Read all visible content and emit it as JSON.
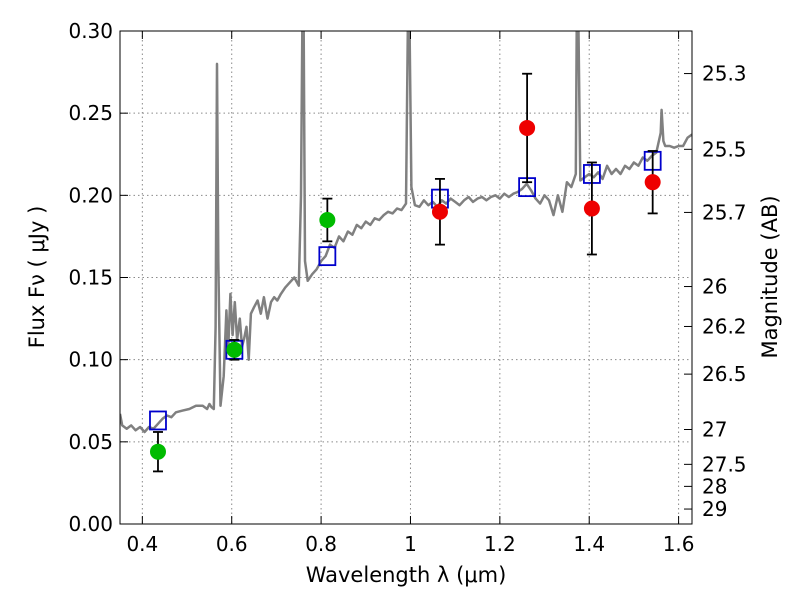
{
  "chart_data": {
    "type": "scatter",
    "title": "",
    "xlabel": "Wavelength  λ (μm)",
    "ylabel": "Flux  Fν  ( μJy )",
    "y2label": "Magnitude (AB)",
    "xlim": [
      0.35,
      1.63
    ],
    "ylim": [
      0.0,
      0.3
    ],
    "grid": true,
    "legend": "none",
    "x_ticks": [
      0.4,
      0.6,
      0.8,
      1.0,
      1.2,
      1.4,
      1.6
    ],
    "x_tick_labels": [
      "0.4",
      "0.6",
      "0.8",
      "1",
      "1.2",
      "1.4",
      "1.6"
    ],
    "y_ticks": [
      0.0,
      0.05,
      0.1,
      0.15,
      0.2,
      0.25,
      0.3
    ],
    "y_tick_labels": [
      "0.00",
      "0.05",
      "0.10",
      "0.15",
      "0.20",
      "0.25",
      "0.30"
    ],
    "y2_ticks": [
      {
        "label": "25.3",
        "flux": 0.2741
      },
      {
        "label": "25.5",
        "flux": 0.228
      },
      {
        "label": "25.7",
        "flux": 0.1896
      },
      {
        "label": "26",
        "flux": 0.1445
      },
      {
        "label": "26.2",
        "flux": 0.1202
      },
      {
        "label": "26.5",
        "flux": 0.0912
      },
      {
        "label": "27",
        "flux": 0.0575
      },
      {
        "label": "27.5",
        "flux": 0.0363
      },
      {
        "label": "28",
        "flux": 0.0229
      },
      {
        "label": "29",
        "flux": 0.0091
      }
    ],
    "colors": {
      "model": "#808080",
      "green": "#00bb00",
      "red": "#ee0000",
      "box": "#0000cc",
      "grid": "#8a8a8a"
    },
    "series": [
      {
        "kind": "line",
        "points": [
          [
            0.35,
            0.067
          ],
          [
            0.355,
            0.06
          ],
          [
            0.365,
            0.058
          ],
          [
            0.375,
            0.06
          ],
          [
            0.385,
            0.057
          ],
          [
            0.395,
            0.059
          ],
          [
            0.405,
            0.056
          ],
          [
            0.415,
            0.059
          ],
          [
            0.425,
            0.058
          ],
          [
            0.435,
            0.061
          ],
          [
            0.445,
            0.064
          ],
          [
            0.455,
            0.066
          ],
          [
            0.465,
            0.065
          ],
          [
            0.475,
            0.068
          ],
          [
            0.49,
            0.069
          ],
          [
            0.505,
            0.07
          ],
          [
            0.52,
            0.072
          ],
          [
            0.535,
            0.072
          ],
          [
            0.545,
            0.07
          ],
          [
            0.55,
            0.073
          ],
          [
            0.555,
            0.071
          ],
          [
            0.56,
            0.07
          ],
          [
            0.564,
            0.12
          ],
          [
            0.567,
            0.28
          ],
          [
            0.57,
            0.16
          ],
          [
            0.575,
            0.072
          ],
          [
            0.582,
            0.09
          ],
          [
            0.588,
            0.13
          ],
          [
            0.592,
            0.105
          ],
          [
            0.597,
            0.14
          ],
          [
            0.602,
            0.115
          ],
          [
            0.607,
            0.135
          ],
          [
            0.612,
            0.112
          ],
          [
            0.618,
            0.125
          ],
          [
            0.623,
            0.108
          ],
          [
            0.628,
            0.113
          ],
          [
            0.633,
            0.12
          ],
          [
            0.638,
            0.1
          ],
          [
            0.643,
            0.128
          ],
          [
            0.65,
            0.132
          ],
          [
            0.658,
            0.136
          ],
          [
            0.665,
            0.128
          ],
          [
            0.672,
            0.138
          ],
          [
            0.68,
            0.125
          ],
          [
            0.688,
            0.135
          ],
          [
            0.695,
            0.138
          ],
          [
            0.702,
            0.136
          ],
          [
            0.71,
            0.14
          ],
          [
            0.72,
            0.144
          ],
          [
            0.73,
            0.147
          ],
          [
            0.74,
            0.15
          ],
          [
            0.75,
            0.145
          ],
          [
            0.755,
            0.2
          ],
          [
            0.758,
            0.3
          ],
          [
            0.761,
            0.3
          ],
          [
            0.764,
            0.16
          ],
          [
            0.77,
            0.148
          ],
          [
            0.78,
            0.152
          ],
          [
            0.79,
            0.155
          ],
          [
            0.8,
            0.16
          ],
          [
            0.81,
            0.163
          ],
          [
            0.82,
            0.17
          ],
          [
            0.83,
            0.168
          ],
          [
            0.84,
            0.175
          ],
          [
            0.85,
            0.172
          ],
          [
            0.86,
            0.178
          ],
          [
            0.87,
            0.176
          ],
          [
            0.88,
            0.182
          ],
          [
            0.89,
            0.18
          ],
          [
            0.9,
            0.184
          ],
          [
            0.91,
            0.182
          ],
          [
            0.92,
            0.186
          ],
          [
            0.93,
            0.185
          ],
          [
            0.94,
            0.188
          ],
          [
            0.95,
            0.19
          ],
          [
            0.96,
            0.189
          ],
          [
            0.97,
            0.192
          ],
          [
            0.98,
            0.191
          ],
          [
            0.99,
            0.195
          ],
          [
            0.994,
            0.3
          ],
          [
            0.998,
            0.3
          ],
          [
            1.002,
            0.205
          ],
          [
            1.01,
            0.194
          ],
          [
            1.02,
            0.193
          ],
          [
            1.03,
            0.197
          ],
          [
            1.04,
            0.194
          ],
          [
            1.05,
            0.196
          ],
          [
            1.06,
            0.193
          ],
          [
            1.07,
            0.197
          ],
          [
            1.08,
            0.195
          ],
          [
            1.09,
            0.198
          ],
          [
            1.1,
            0.196
          ],
          [
            1.11,
            0.194
          ],
          [
            1.12,
            0.197
          ],
          [
            1.13,
            0.199
          ],
          [
            1.14,
            0.196
          ],
          [
            1.15,
            0.198
          ],
          [
            1.16,
            0.199
          ],
          [
            1.17,
            0.197
          ],
          [
            1.18,
            0.199
          ],
          [
            1.19,
            0.2
          ],
          [
            1.2,
            0.198
          ],
          [
            1.21,
            0.201
          ],
          [
            1.22,
            0.199
          ],
          [
            1.23,
            0.201
          ],
          [
            1.24,
            0.202
          ],
          [
            1.25,
            0.204
          ],
          [
            1.26,
            0.207
          ],
          [
            1.27,
            0.203
          ],
          [
            1.28,
            0.198
          ],
          [
            1.29,
            0.195
          ],
          [
            1.3,
            0.2
          ],
          [
            1.31,
            0.197
          ],
          [
            1.32,
            0.188
          ],
          [
            1.33,
            0.2
          ],
          [
            1.34,
            0.19
          ],
          [
            1.35,
            0.208
          ],
          [
            1.36,
            0.205
          ],
          [
            1.37,
            0.213
          ],
          [
            1.372,
            0.3
          ],
          [
            1.376,
            0.3
          ],
          [
            1.38,
            0.209
          ],
          [
            1.39,
            0.211
          ],
          [
            1.4,
            0.213
          ],
          [
            1.41,
            0.211
          ],
          [
            1.42,
            0.214
          ],
          [
            1.43,
            0.21
          ],
          [
            1.44,
            0.218
          ],
          [
            1.45,
            0.213
          ],
          [
            1.46,
            0.216
          ],
          [
            1.47,
            0.213
          ],
          [
            1.48,
            0.218
          ],
          [
            1.49,
            0.216
          ],
          [
            1.5,
            0.22
          ],
          [
            1.51,
            0.218
          ],
          [
            1.52,
            0.223
          ],
          [
            1.53,
            0.221
          ],
          [
            1.54,
            0.224
          ],
          [
            1.55,
            0.226
          ],
          [
            1.56,
            0.238
          ],
          [
            1.562,
            0.252
          ],
          [
            1.566,
            0.233
          ],
          [
            1.57,
            0.23
          ],
          [
            1.58,
            0.23
          ],
          [
            1.59,
            0.229
          ],
          [
            1.6,
            0.23
          ],
          [
            1.61,
            0.23
          ],
          [
            1.62,
            0.235
          ],
          [
            1.63,
            0.237
          ]
        ]
      },
      {
        "kind": "squares",
        "points": [
          {
            "x": 0.435,
            "y": 0.063
          },
          {
            "x": 0.606,
            "y": 0.106
          },
          {
            "x": 0.814,
            "y": 0.163
          },
          {
            "x": 1.066,
            "y": 0.198
          },
          {
            "x": 1.261,
            "y": 0.205
          },
          {
            "x": 1.406,
            "y": 0.213
          },
          {
            "x": 1.542,
            "y": 0.221
          }
        ]
      },
      {
        "kind": "points",
        "color": "green",
        "points": [
          {
            "x": 0.435,
            "y": 0.044,
            "err": 0.012
          },
          {
            "x": 0.606,
            "y": 0.106,
            "err": 0.006
          },
          {
            "x": 0.814,
            "y": 0.185,
            "err": 0.013
          }
        ]
      },
      {
        "kind": "points",
        "color": "red",
        "points": [
          {
            "x": 1.066,
            "y": 0.19,
            "err": 0.02
          },
          {
            "x": 1.261,
            "y": 0.241,
            "err": 0.033
          },
          {
            "x": 1.406,
            "y": 0.192,
            "err": 0.028
          },
          {
            "x": 1.542,
            "y": 0.208,
            "err": 0.019
          }
        ]
      }
    ]
  }
}
